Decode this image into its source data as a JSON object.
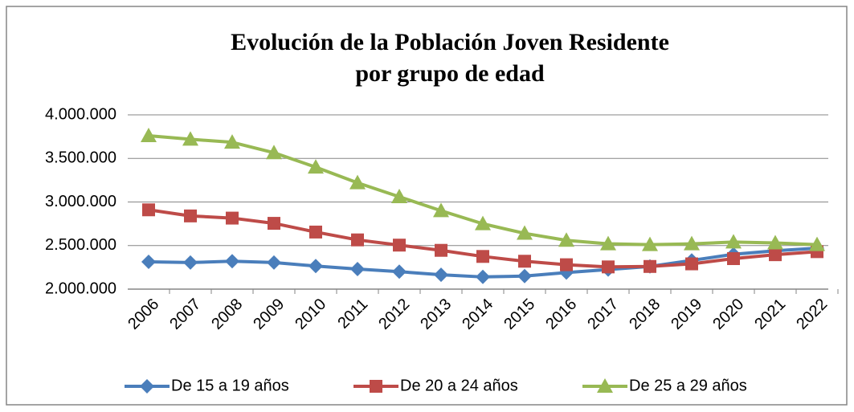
{
  "chart_data": {
    "type": "line",
    "title": [
      "Evolución de la Población Joven Residente",
      "por grupo de edad"
    ],
    "categories": [
      "2006",
      "2007",
      "2008",
      "2009",
      "2010",
      "2011",
      "2012",
      "2013",
      "2014",
      "2015",
      "2016",
      "2017",
      "2018",
      "2019",
      "2020",
      "2021",
      "2022"
    ],
    "series": [
      {
        "name": "De 15 a 19 años",
        "color": "#4a7ebb",
        "marker": "diamond",
        "values": [
          2313000,
          2305000,
          2320000,
          2305000,
          2265000,
          2230000,
          2200000,
          2165000,
          2140000,
          2150000,
          2190000,
          2225000,
          2260000,
          2330000,
          2400000,
          2440000,
          2470000
        ]
      },
      {
        "name": "De 20 a 24 años",
        "color": "#be4b48",
        "marker": "square",
        "values": [
          2910000,
          2840000,
          2815000,
          2755000,
          2655000,
          2565000,
          2505000,
          2445000,
          2375000,
          2320000,
          2280000,
          2255000,
          2260000,
          2290000,
          2350000,
          2395000,
          2430000
        ]
      },
      {
        "name": "De 25 a 29 años",
        "color": "#98b954",
        "marker": "triangle",
        "values": [
          3760000,
          3720000,
          3685000,
          3565000,
          3400000,
          3220000,
          3060000,
          2900000,
          2750000,
          2640000,
          2560000,
          2520000,
          2510000,
          2520000,
          2540000,
          2530000,
          2510000
        ]
      }
    ],
    "ylim": [
      2000000,
      4000000
    ],
    "yticks": [
      {
        "value": 2000000,
        "label": "2.000.000"
      },
      {
        "value": 2500000,
        "label": "2.500.000"
      },
      {
        "value": 3000000,
        "label": "3.000.000"
      },
      {
        "value": 3500000,
        "label": "3.500.000"
      },
      {
        "value": 4000000,
        "label": "4.000.000"
      }
    ],
    "grid": true,
    "legend": "bottom"
  }
}
